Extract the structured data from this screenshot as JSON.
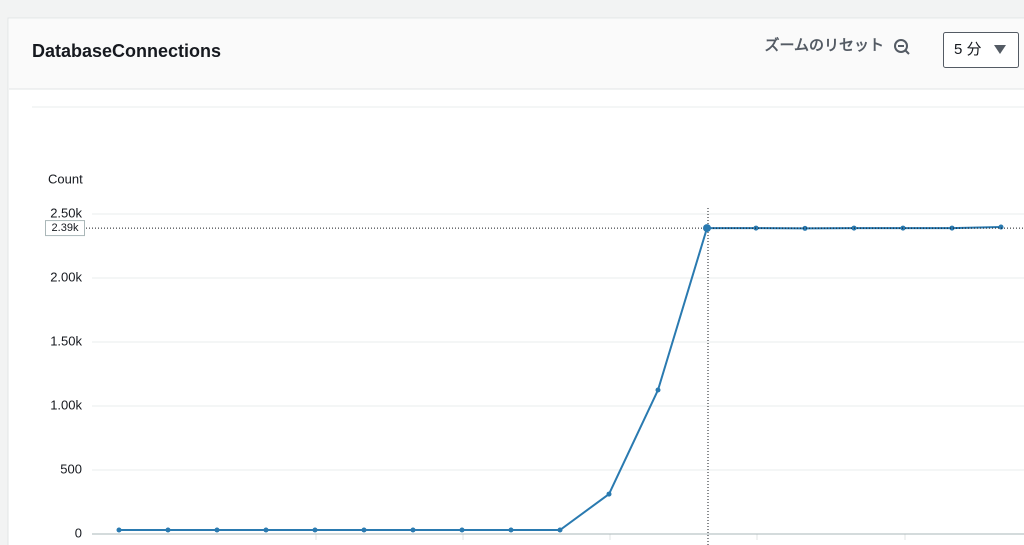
{
  "header": {
    "title": "DatabaseConnections",
    "reset_zoom": "ズームのリセット",
    "period": "5 分"
  },
  "chart_data": {
    "type": "line",
    "y_label": "Count",
    "series": [
      {
        "color": "#2a7ab0",
        "values": [
          31,
          31,
          31,
          31,
          31,
          31,
          31,
          31,
          31,
          31,
          312,
          1125,
          2390,
          2390,
          2388,
          2390,
          2390,
          2390,
          2398
        ]
      }
    ],
    "ylim": [
      0,
      2500
    ],
    "yticks": [
      0,
      500,
      {
        "value": 1000,
        "label": "1.00k"
      },
      {
        "value": 1500,
        "label": "1.50k"
      },
      {
        "value": 2000,
        "label": "2.00k"
      },
      {
        "value": 2500,
        "label": "2.50k"
      }
    ],
    "grid": true,
    "crosshair": {
      "value": 2390,
      "label": "2.39k"
    }
  }
}
